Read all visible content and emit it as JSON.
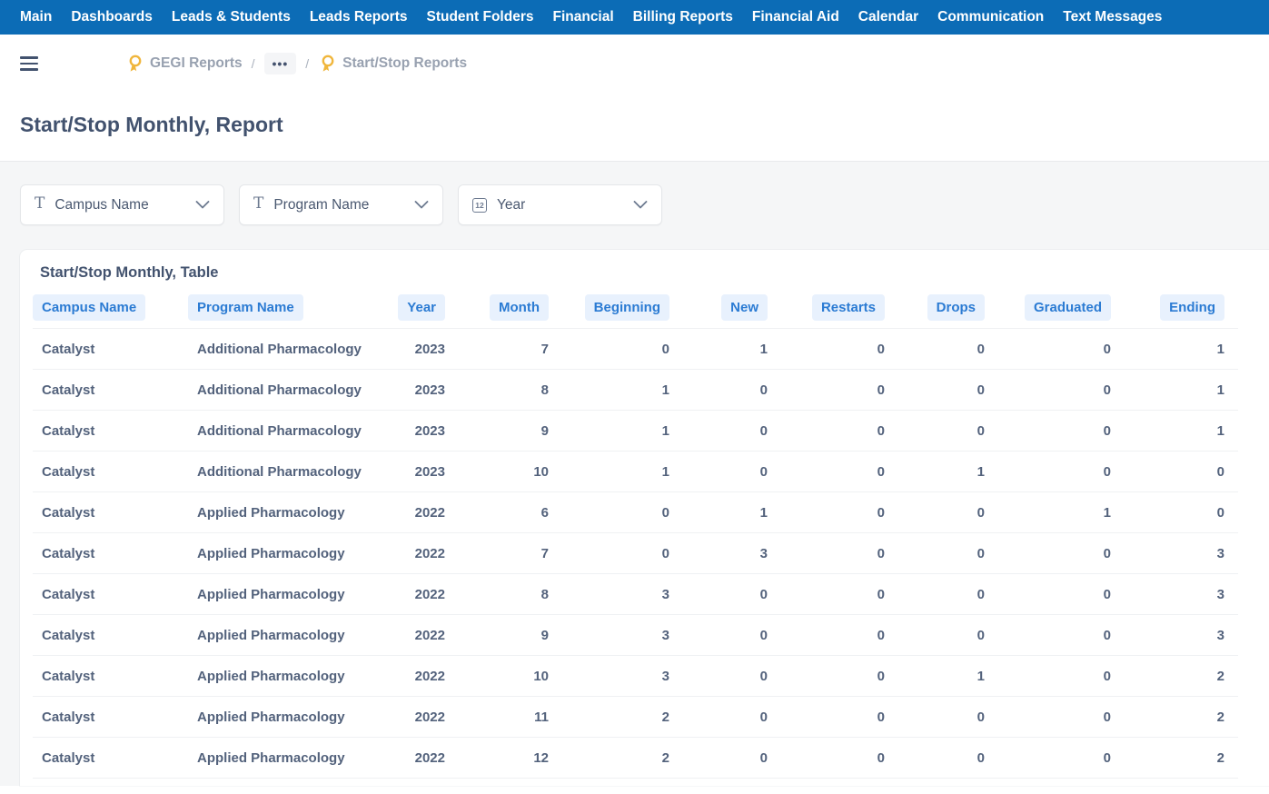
{
  "nav": {
    "items": [
      "Main",
      "Dashboards",
      "Leads & Students",
      "Leads Reports",
      "Student Folders",
      "Financial",
      "Billing Reports",
      "Financial Aid",
      "Calendar",
      "Communication",
      "Text Messages"
    ]
  },
  "breadcrumb": {
    "first_label": "GEGI Reports",
    "separator": "/",
    "ellipsis": "•••",
    "last_label": "Start/Stop Reports"
  },
  "page": {
    "title": "Start/Stop Monthly, Report"
  },
  "filters": {
    "items": [
      {
        "label": "Campus Name",
        "icon": "text-type-icon"
      },
      {
        "label": "Program Name",
        "icon": "text-type-icon"
      },
      {
        "label": "Year",
        "icon": "number-12-icon"
      }
    ]
  },
  "table": {
    "title": "Start/Stop Monthly, Table",
    "columns": [
      {
        "label": "Campus Name",
        "align": "left"
      },
      {
        "label": "Program Name",
        "align": "left"
      },
      {
        "label": "Year",
        "align": "right"
      },
      {
        "label": "Month",
        "align": "right"
      },
      {
        "label": "Beginning",
        "align": "right"
      },
      {
        "label": "New",
        "align": "right"
      },
      {
        "label": "Restarts",
        "align": "right"
      },
      {
        "label": "Drops",
        "align": "right"
      },
      {
        "label": "Graduated",
        "align": "right"
      },
      {
        "label": "Ending",
        "align": "right"
      }
    ],
    "rows": [
      [
        "Catalyst",
        "Additional Pharmacology",
        "2023",
        "7",
        "0",
        "1",
        "0",
        "0",
        "0",
        "1"
      ],
      [
        "Catalyst",
        "Additional Pharmacology",
        "2023",
        "8",
        "1",
        "0",
        "0",
        "0",
        "0",
        "1"
      ],
      [
        "Catalyst",
        "Additional Pharmacology",
        "2023",
        "9",
        "1",
        "0",
        "0",
        "0",
        "0",
        "1"
      ],
      [
        "Catalyst",
        "Additional Pharmacology",
        "2023",
        "10",
        "1",
        "0",
        "0",
        "1",
        "0",
        "0"
      ],
      [
        "Catalyst",
        "Applied Pharmacology",
        "2022",
        "6",
        "0",
        "1",
        "0",
        "0",
        "1",
        "0"
      ],
      [
        "Catalyst",
        "Applied Pharmacology",
        "2022",
        "7",
        "0",
        "3",
        "0",
        "0",
        "0",
        "3"
      ],
      [
        "Catalyst",
        "Applied Pharmacology",
        "2022",
        "8",
        "3",
        "0",
        "0",
        "0",
        "0",
        "3"
      ],
      [
        "Catalyst",
        "Applied Pharmacology",
        "2022",
        "9",
        "3",
        "0",
        "0",
        "0",
        "0",
        "3"
      ],
      [
        "Catalyst",
        "Applied Pharmacology",
        "2022",
        "10",
        "3",
        "0",
        "0",
        "1",
        "0",
        "2"
      ],
      [
        "Catalyst",
        "Applied Pharmacology",
        "2022",
        "11",
        "2",
        "0",
        "0",
        "0",
        "0",
        "2"
      ],
      [
        "Catalyst",
        "Applied Pharmacology",
        "2022",
        "12",
        "2",
        "0",
        "0",
        "0",
        "0",
        "2"
      ]
    ]
  },
  "colors": {
    "navbar": "#0c6cb6",
    "accent_blue": "#2b7bd3",
    "pill_bg": "#e8f1fd",
    "gold": "#f0b63c",
    "text_dark": "#42526e",
    "text_body": "#53627c",
    "crumb_gray": "#98a1b0",
    "section_bg": "#f5f6f7"
  }
}
